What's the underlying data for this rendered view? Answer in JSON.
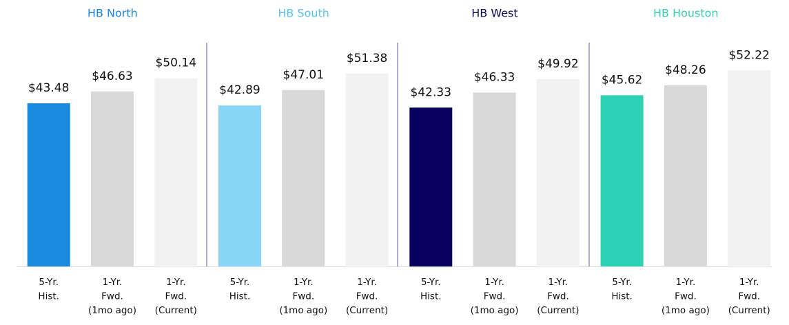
{
  "chart_data": [
    {
      "type": "bar",
      "title": "HB North",
      "title_color": "#1a86e0",
      "categories": [
        [
          "5-Yr.",
          "Hist."
        ],
        [
          "1-Yr.",
          "Fwd.",
          "(1mo ago)"
        ],
        [
          "1-Yr.",
          "Fwd.",
          "(Current)"
        ]
      ],
      "values": [
        43.48,
        46.63,
        50.14
      ],
      "value_labels": [
        "$43.48",
        "$46.63",
        "$50.14"
      ],
      "colors": [
        "#1a8ae0",
        "#d9d9d9",
        "#f2f2f2"
      ],
      "ylim": [
        0,
        71
      ]
    },
    {
      "type": "bar",
      "title": "HB South",
      "title_color": "#56c4f2",
      "categories": [
        [
          "5-Yr.",
          "Hist."
        ],
        [
          "1-Yr.",
          "Fwd.",
          "(1mo ago)"
        ],
        [
          "1-Yr.",
          "Fwd.",
          "(Current)"
        ]
      ],
      "values": [
        42.89,
        47.01,
        51.38
      ],
      "value_labels": [
        "$42.89",
        "$47.01",
        "$51.38"
      ],
      "colors": [
        "#87d6f7",
        "#d9d9d9",
        "#f2f2f2"
      ],
      "ylim": [
        0,
        71
      ]
    },
    {
      "type": "bar",
      "title": "HB West",
      "title_color": "#0a0a5c",
      "categories": [
        [
          "5-Yr.",
          "Hist."
        ],
        [
          "1-Yr.",
          "Fwd.",
          "(1mo ago)"
        ],
        [
          "1-Yr.",
          "Fwd.",
          "(Current)"
        ]
      ],
      "values": [
        42.33,
        46.33,
        49.92
      ],
      "value_labels": [
        "$42.33",
        "$46.33",
        "$49.92"
      ],
      "colors": [
        "#07005e",
        "#d9d9d9",
        "#f2f2f2"
      ],
      "ylim": [
        0,
        71
      ]
    },
    {
      "type": "bar",
      "title": "HB Houston",
      "title_color": "#33d1b3",
      "categories": [
        [
          "5-Yr.",
          "Hist."
        ],
        [
          "1-Yr.",
          "Fwd.",
          "(1mo ago)"
        ],
        [
          "1-Yr.",
          "Fwd.",
          "(Current)"
        ]
      ],
      "values": [
        45.62,
        48.26,
        52.22
      ],
      "value_labels": [
        "$45.62",
        "$48.26",
        "$52.22"
      ],
      "colors": [
        "#2fd1b4",
        "#d9d9d9",
        "#f2f2f2"
      ],
      "ylim": [
        0,
        71
      ]
    }
  ]
}
